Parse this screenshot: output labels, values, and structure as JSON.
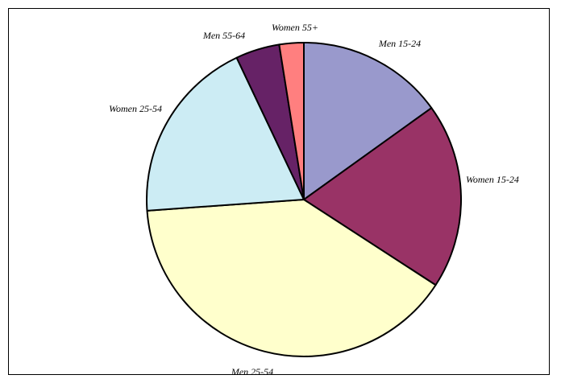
{
  "chart_data": {
    "type": "pie",
    "title": "",
    "slices": [
      {
        "label": "Men 15-24",
        "value": 15.0,
        "color": "#9999cc"
      },
      {
        "label": "Women 15-24",
        "value": 19.0,
        "color": "#993366"
      },
      {
        "label": "Men 25-54",
        "value": 39.5,
        "color": "#ffffcc"
      },
      {
        "label": "Women 25-54",
        "value": 19.0,
        "color": "#ccecf4"
      },
      {
        "label": "Men 55-64",
        "value": 4.5,
        "color": "#662266"
      },
      {
        "label": "Women 55+",
        "value": 2.5,
        "color": "#ff7f7f"
      }
    ],
    "start": "12 o'clock",
    "direction": "clockwise",
    "legend": "none",
    "labels": "outside slices"
  }
}
